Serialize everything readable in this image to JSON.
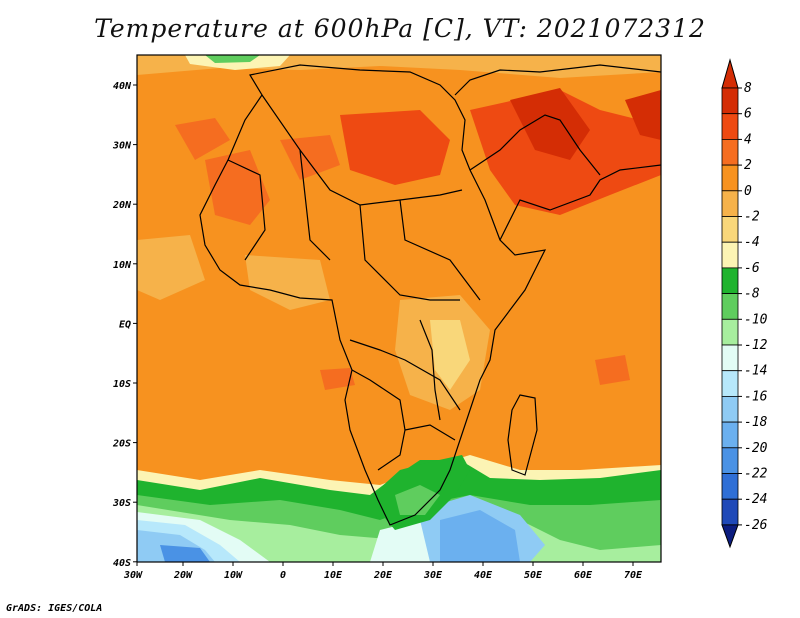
{
  "title": "Temperature at 600hPa [C], VT: 2021072312",
  "credit": "GrADS: IGES/COLA",
  "map": {
    "lon_range": [
      -30,
      75
    ],
    "lat_range": [
      -40,
      45
    ],
    "x_ticks": [
      "30W",
      "20W",
      "10W",
      "0",
      "10E",
      "20E",
      "30E",
      "40E",
      "50E",
      "60E",
      "70E"
    ],
    "y_ticks": [
      "40N",
      "30N",
      "20N",
      "10N",
      "EQ",
      "10S",
      "20S",
      "30S",
      "40S"
    ]
  },
  "colorbar": {
    "labels": [
      "8",
      "6",
      "4",
      "2",
      "0",
      "-2",
      "-4",
      "-6",
      "-8",
      "-10",
      "-12",
      "-14",
      "-16",
      "-18",
      "-20",
      "-22",
      "-24",
      "-26"
    ],
    "colors": [
      "#d42d05",
      "#ee4a12",
      "#f56d20",
      "#f7921f",
      "#f6b24a",
      "#f9d77a",
      "#fcf4b4",
      "#1fb32e",
      "#5fcd5e",
      "#a7ee9e",
      "#e3fcf5",
      "#b7e8fb",
      "#8fcbf4",
      "#6bb0ef",
      "#4a92e5",
      "#2f6fd6",
      "#1f49b8",
      "#0c1d80"
    ]
  }
}
